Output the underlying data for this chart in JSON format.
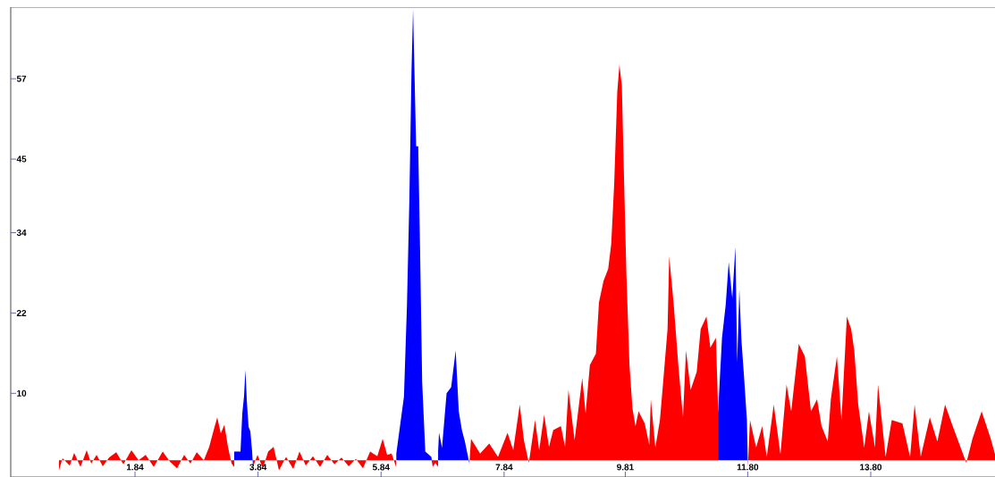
{
  "chart_data": {
    "type": "area",
    "xlim": [
      -0.18,
      15.82
    ],
    "ylim": [
      -2.5,
      67.7
    ],
    "xticks": [
      1.84,
      3.84,
      5.84,
      7.84,
      9.81,
      {
        "value": 11.8,
        "label": "11.80"
      },
      {
        "value": 13.8,
        "label": "13.80"
      }
    ],
    "yticks": [
      10,
      22,
      34,
      45,
      57
    ],
    "series": [
      {
        "color": "#ff0000",
        "x": [
          0.604,
          0.662,
          0.779,
          0.851,
          0.953,
          1.055,
          1.128,
          1.215,
          1.317,
          1.418,
          1.535,
          1.651,
          1.782,
          1.898,
          2.014,
          2.145,
          2.29,
          2.407,
          2.523,
          2.639,
          2.741,
          2.843,
          2.959,
          3.046,
          3.119,
          3.177,
          3.235,
          3.293,
          3.351,
          3.41,
          3.453,
          3.6,
          3.758,
          3.831,
          3.918,
          4.005,
          4.093,
          4.18,
          4.296,
          4.412,
          4.514,
          4.616,
          4.732,
          4.848,
          4.965,
          5.081,
          5.197,
          5.313,
          5.43,
          5.546,
          5.662,
          5.779,
          5.866,
          5.939,
          6.011,
          6.084,
          6.4,
          6.68,
          6.723,
          6.767,
          7.0,
          7.276,
          7.302,
          7.45,
          7.598,
          7.741,
          7.896,
          7.988,
          8.094,
          8.162,
          8.242,
          8.343,
          8.41,
          8.491,
          8.569,
          8.639,
          8.763,
          8.831,
          8.886,
          8.986,
          9.11,
          9.165,
          9.234,
          9.332,
          9.382,
          9.456,
          9.532,
          9.581,
          9.63,
          9.68,
          9.715,
          9.754,
          9.789,
          9.828,
          9.878,
          9.927,
          9.976,
          10.026,
          10.126,
          10.2,
          10.225,
          10.299,
          10.373,
          10.422,
          10.497,
          10.524,
          10.598,
          10.672,
          10.748,
          10.797,
          10.872,
          10.971,
          11.035,
          11.129,
          11.193,
          11.283,
          11.317,
          11.6,
          11.803,
          11.837,
          11.937,
          12.036,
          12.11,
          12.223,
          12.332,
          12.431,
          12.507,
          12.63,
          12.729,
          12.828,
          12.927,
          13.001,
          13.101,
          13.151,
          13.25,
          13.324,
          13.412,
          13.482,
          13.532,
          13.596,
          13.694,
          13.77,
          13.869,
          13.918,
          14.042,
          14.141,
          14.315,
          14.439,
          14.513,
          14.612,
          14.76,
          14.883,
          15.008,
          15.132,
          15.354,
          15.453,
          15.603,
          15.751,
          15.82
        ],
        "values": [
          -1.5,
          0.3,
          -0.8,
          1.1,
          -1.0,
          1.5,
          -0.5,
          0.8,
          -0.9,
          0.4,
          1.2,
          -0.6,
          1.5,
          0.0,
          0.8,
          -1.0,
          1.3,
          -0.2,
          -1.2,
          0.8,
          -0.5,
          1.2,
          0.0,
          2.0,
          4.5,
          6.4,
          4.0,
          5.3,
          2.0,
          -0.5,
          -1.0,
          null,
          -1.0,
          0.8,
          -1.2,
          1.3,
          2.0,
          -1.5,
          0.5,
          -1.3,
          1.3,
          -0.8,
          0.6,
          -1.0,
          0.8,
          -0.6,
          0.4,
          -0.9,
          0.2,
          -1.2,
          1.3,
          0.6,
          3.2,
          0.8,
          1.0,
          -1.0,
          null,
          -1.0,
          -0.4,
          -1.0,
          null,
          -0.5,
          3.2,
          1.0,
          2.5,
          0.5,
          4.1,
          1.5,
          8.3,
          3.0,
          -0.4,
          6.0,
          1.5,
          6.8,
          2.0,
          4.5,
          5.1,
          2.0,
          10.5,
          3.0,
          12.3,
          7.0,
          14.2,
          15.9,
          23.6,
          26.8,
          28.6,
          32.3,
          41.4,
          55.1,
          59.1,
          56.0,
          42.3,
          27.8,
          14.2,
          7.7,
          5.1,
          7.3,
          5.5,
          2.3,
          9.1,
          1.9,
          6.0,
          11.3,
          19.6,
          30.5,
          23.2,
          14.2,
          6.4,
          16.4,
          10.5,
          13.2,
          19.6,
          21.5,
          16.8,
          18.3,
          8.3,
          null,
          -1.0,
          6.0,
          1.9,
          5.1,
          0.5,
          8.3,
          0.9,
          11.3,
          7.3,
          17.4,
          15.5,
          7.3,
          9.1,
          5.1,
          2.8,
          9.1,
          15.5,
          6.0,
          21.5,
          19.6,
          16.4,
          8.3,
          1.9,
          7.3,
          1.9,
          11.3,
          0.5,
          6.0,
          5.5,
          0.5,
          8.3,
          0.5,
          6.4,
          2.8,
          8.3,
          5.1,
          -0.4,
          3.2,
          7.3,
          3.2,
          0.9
        ]
      },
      {
        "color": "#0000ff",
        "x": [
          3.453,
          3.555,
          3.584,
          3.613,
          3.635,
          3.657,
          3.686,
          3.715,
          3.744,
          3.758,
          5.0,
          6.088,
          6.212,
          6.261,
          6.3,
          6.335,
          6.36,
          6.41,
          6.444,
          6.475,
          6.508,
          6.559,
          6.658,
          6.68,
          6.72,
          6.767,
          6.782,
          6.831,
          6.905,
          6.979,
          7.053,
          7.103,
          7.154,
          7.203,
          7.276,
          9.0,
          11.317,
          11.382,
          11.442,
          11.491,
          11.549,
          11.6,
          11.629,
          11.664,
          11.699,
          11.738,
          11.787,
          11.803
        ],
        "values": [
          1.3,
          1.3,
          7.0,
          9.6,
          13.5,
          9.0,
          5.0,
          4.3,
          1.3,
          -1.0,
          null,
          1.0,
          9.5,
          23.2,
          39.0,
          58.3,
          67.4,
          46.9,
          46.9,
          31.0,
          11.7,
          1.3,
          0.5,
          -1.0,
          null,
          1.3,
          4.1,
          1.9,
          10.0,
          10.9,
          16.4,
          7.3,
          4.5,
          2.8,
          -0.5,
          null,
          6.9,
          18.3,
          23.2,
          29.6,
          24.2,
          31.9,
          14.6,
          25.5,
          17.8,
          12.8,
          6.0,
          -1.0
        ]
      }
    ]
  }
}
